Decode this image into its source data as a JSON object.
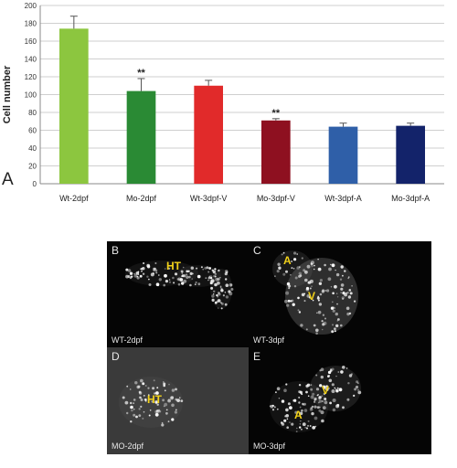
{
  "chart_data": {
    "type": "bar",
    "categories": [
      "Wt-2dpf",
      "Mo-2dpf",
      "Wt-3dpf-V",
      "Mo-3dpf-V",
      "Wt-3dpf-A",
      "Mo-3dpf-A"
    ],
    "values": [
      174,
      104,
      110,
      71,
      64,
      65
    ],
    "errors": [
      14,
      14,
      6,
      2,
      4,
      3
    ],
    "significance": [
      "",
      "**",
      "",
      "**",
      "",
      ""
    ],
    "colors": [
      "#8cc63f",
      "#2a8a34",
      "#e12a2a",
      "#8e1020",
      "#2f5fa8",
      "#13236a"
    ],
    "ylabel": "Cell number",
    "xlabel": "",
    "ylim": [
      0,
      200
    ],
    "yticks": [
      0,
      20,
      40,
      60,
      80,
      100,
      120,
      140,
      160,
      180,
      200
    ],
    "grid": true
  },
  "panels": {
    "a_letter": "A",
    "b": {
      "letter": "B",
      "caption": "WT-2dpf",
      "labels": [
        "HT"
      ]
    },
    "c": {
      "letter": "C",
      "caption": "WT-3dpf",
      "labels": [
        "A",
        "V"
      ]
    },
    "d": {
      "letter": "D",
      "caption": "MO-2dpf",
      "labels": [
        "HT"
      ]
    },
    "e": {
      "letter": "E",
      "caption": "MO-3dpf",
      "labels": [
        "V",
        "A"
      ]
    }
  }
}
